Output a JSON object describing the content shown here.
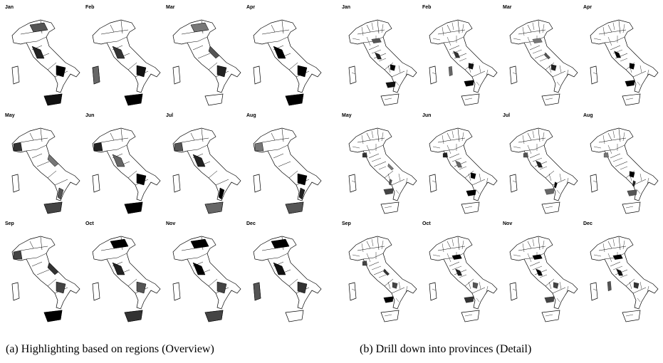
{
  "panels": [
    {
      "caption": "(a)  Highlighting based on regions (Overview)",
      "months": [
        "Jan",
        "Feb",
        "Mar",
        "Apr",
        "May",
        "Jun",
        "Jul",
        "Aug",
        "Sep",
        "Oct",
        "Nov",
        "Dec"
      ]
    },
    {
      "caption": "(b)  Drill down into provinces (Detail)",
      "months": [
        "Jan",
        "Feb",
        "Mar",
        "Apr",
        "May",
        "Jun",
        "Jul",
        "Aug",
        "Sep",
        "Oct",
        "Nov",
        "Dec"
      ]
    }
  ]
}
